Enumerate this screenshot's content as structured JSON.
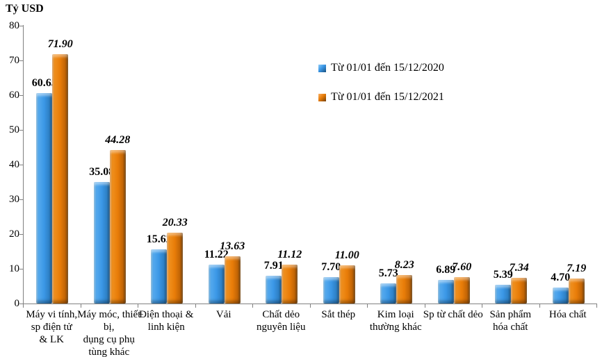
{
  "title": "Tỷ USD",
  "legend": {
    "items": [
      {
        "label": "Từ 01/01 đến 15/12/2020",
        "color": "#3b97e6"
      },
      {
        "label": "Từ 01/01 đến 15/12/2021",
        "color": "#e87c08"
      }
    ]
  },
  "chart_data": {
    "type": "bar",
    "title": "Tỷ USD",
    "xlabel": "",
    "ylabel": "Tỷ USD",
    "ylim": [
      0,
      80
    ],
    "ytick_step": 10,
    "grid": false,
    "legend_position": "inside-upper-right",
    "categories": [
      "Máy vi tính,\nsp điện tử\n& LK",
      "Máy móc, thiết\nbị,\ndụng cụ phụ\ntùng khác",
      "Điện thoại &\nlinh kiện",
      "Vải",
      "Chất dẻo\nnguyên liệu",
      "Sắt thép",
      "Kim loại\nthường khác",
      "Sp từ chất dẻo",
      "Sản phẩm\nhóa chất",
      "Hóa chất"
    ],
    "series": [
      {
        "name": "Từ 01/01 đến 15/12/2020",
        "color": "#3b97e6",
        "values": [
          60.65,
          35.08,
          15.62,
          11.22,
          7.91,
          7.7,
          5.73,
          6.89,
          5.39,
          4.7
        ]
      },
      {
        "name": "Từ 01/01 đến 15/12/2021",
        "color": "#e87c08",
        "values": [
          71.9,
          44.28,
          20.33,
          13.63,
          11.12,
          11.0,
          8.23,
          7.6,
          7.34,
          7.19
        ]
      }
    ]
  }
}
